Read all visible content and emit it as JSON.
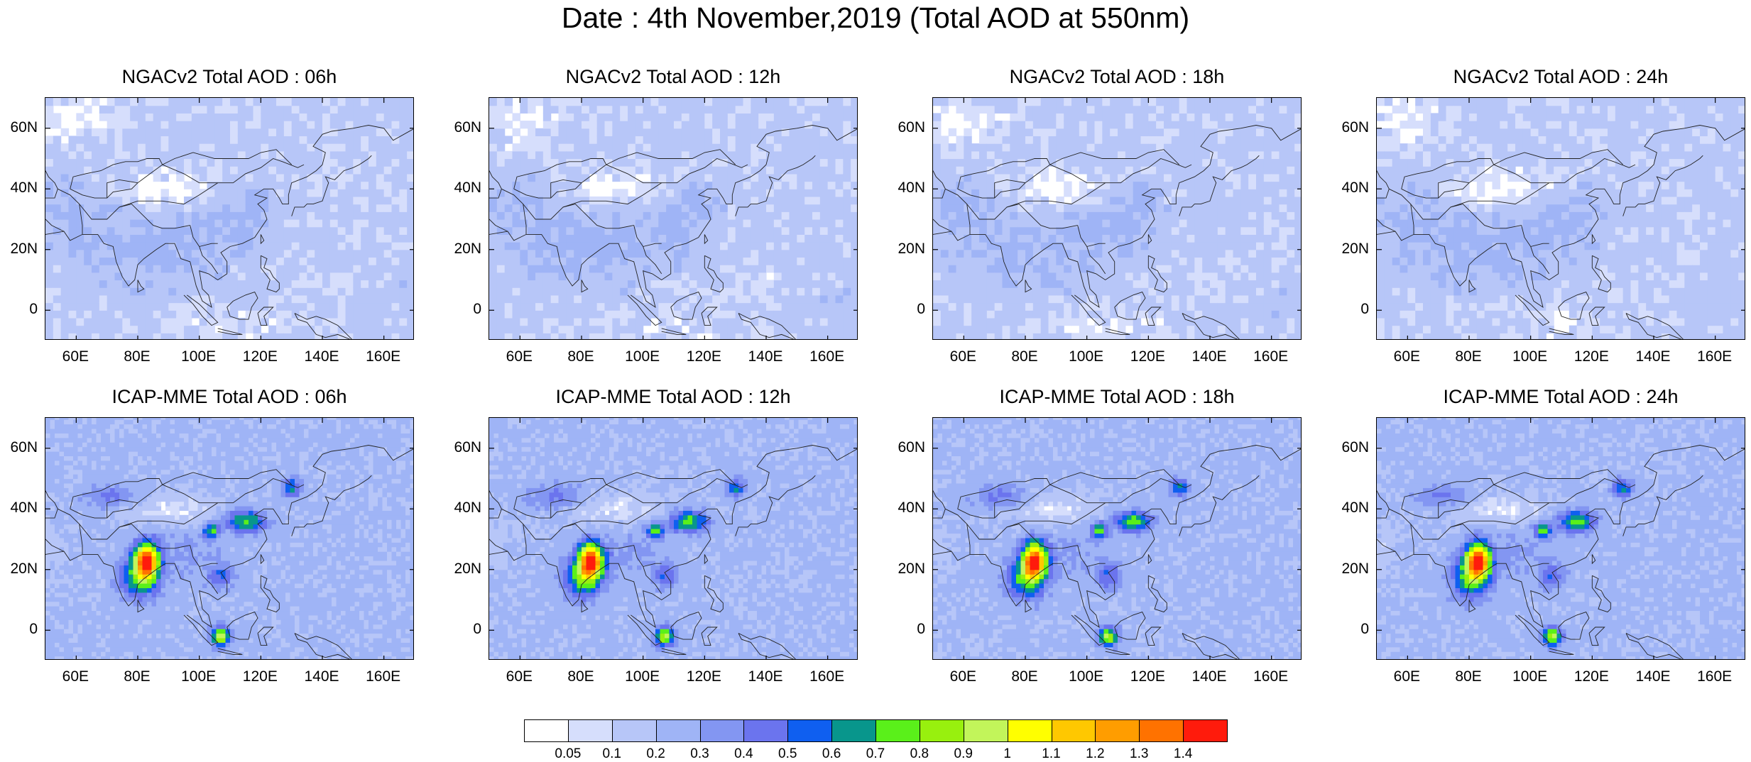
{
  "title": "Date : 4th November,2019 (Total AOD at 550nm)",
  "panels": [
    {
      "title": "NGACv2 Total AOD : 06h",
      "model": "ngac",
      "hour": 6
    },
    {
      "title": "NGACv2 Total AOD : 12h",
      "model": "ngac",
      "hour": 12
    },
    {
      "title": "NGACv2 Total AOD : 18h",
      "model": "ngac",
      "hour": 18
    },
    {
      "title": "NGACv2 Total AOD : 24h",
      "model": "ngac",
      "hour": 24
    },
    {
      "title": "ICAP-MME Total AOD : 06h",
      "model": "icap",
      "hour": 6
    },
    {
      "title": "ICAP-MME Total AOD : 12h",
      "model": "icap",
      "hour": 12
    },
    {
      "title": "ICAP-MME Total AOD : 18h",
      "model": "icap",
      "hour": 18
    },
    {
      "title": "ICAP-MME Total AOD : 24h",
      "model": "icap",
      "hour": 24
    }
  ],
  "map_extent": {
    "lon_min": 50,
    "lon_max": 170,
    "lat_min": -10,
    "lat_max": 70
  },
  "lat_ticks": [
    {
      "value": 60,
      "label": "60N"
    },
    {
      "value": 40,
      "label": "40N"
    },
    {
      "value": 20,
      "label": "20N"
    },
    {
      "value": 0,
      "label": "0"
    }
  ],
  "lon_ticks": [
    {
      "value": 60,
      "label": "60E"
    },
    {
      "value": 80,
      "label": "80E"
    },
    {
      "value": 100,
      "label": "100E"
    },
    {
      "value": 120,
      "label": "120E"
    },
    {
      "value": 140,
      "label": "140E"
    },
    {
      "value": 160,
      "label": "160E"
    }
  ],
  "colorbar": {
    "colors": [
      "#ffffff",
      "#d6defc",
      "#b7c6f8",
      "#9fb4f6",
      "#8396f2",
      "#6b74ee",
      "#0f5ff0",
      "#08968c",
      "#5af01a",
      "#98f00e",
      "#c2f55a",
      "#ffff00",
      "#ffc800",
      "#ff9d00",
      "#ff7200",
      "#ff1b0c"
    ],
    "labels": [
      "0.05",
      "0.1",
      "0.2",
      "0.3",
      "0.4",
      "0.5",
      "0.6",
      "0.7",
      "0.8",
      "0.9",
      "1",
      "1.1",
      "1.2",
      "1.3",
      "1.4"
    ]
  }
}
